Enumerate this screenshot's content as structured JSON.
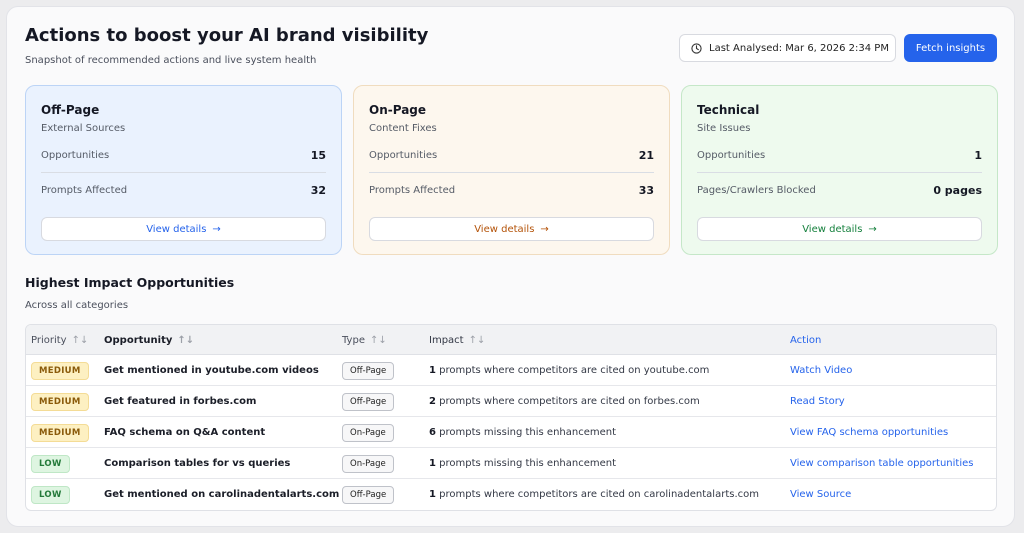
{
  "header": {
    "title": "Actions to boost your AI brand visibility",
    "subtitle": "Snapshot of recommended actions and live system health",
    "last_analysed": "Last Analysed: Mar 6, 2026 2:34 PM",
    "fetch_label": "Fetch insights",
    "clock_icon": "clock-icon",
    "accent": "#2563eb"
  },
  "cards": [
    {
      "title": "Off-Page",
      "subtitle": "External Sources",
      "m1_label": "Opportunities",
      "m1_value": "15",
      "m2_label": "Prompts Affected",
      "m2_value": "32",
      "button": "View details",
      "color": "#2563eb"
    },
    {
      "title": "On-Page",
      "subtitle": "Content Fixes",
      "m1_label": "Opportunities",
      "m1_value": "21",
      "m2_label": "Prompts Affected",
      "m2_value": "33",
      "button": "View details",
      "color": "#b45309"
    },
    {
      "title": "Technical",
      "subtitle": "Site Issues",
      "m1_label": "Opportunities",
      "m1_value": "1",
      "m2_label": "Pages/Crawlers Blocked",
      "m2_value": "0 pages",
      "button": "View details",
      "color": "#15803d"
    }
  ],
  "section": {
    "title": "Highest Impact Opportunities",
    "subtitle": "Across all categories"
  },
  "table": {
    "columns": [
      "Priority",
      "Opportunity",
      "Type",
      "Impact",
      "Action"
    ],
    "rows": [
      {
        "priority": "MEDIUM",
        "opportunity": "Get mentioned in youtube.com videos",
        "type": "Off-Page",
        "impact_num": "1",
        "impact_text": " prompts where competitors are cited on youtube.com",
        "action": "Watch Video"
      },
      {
        "priority": "MEDIUM",
        "opportunity": "Get featured in forbes.com",
        "type": "Off-Page",
        "impact_num": "2",
        "impact_text": " prompts where competitors are cited on forbes.com",
        "action": "Read Story"
      },
      {
        "priority": "MEDIUM",
        "opportunity": "FAQ schema on Q&A content",
        "type": "On-Page",
        "impact_num": "6",
        "impact_text": " prompts missing this enhancement",
        "action": "View FAQ schema opportunities"
      },
      {
        "priority": "LOW",
        "opportunity": "Comparison tables for vs queries",
        "type": "On-Page",
        "impact_num": "1",
        "impact_text": " prompts missing this enhancement",
        "action": "View comparison table opportunities"
      },
      {
        "priority": "LOW",
        "opportunity": "Get mentioned on carolinadentalarts.com",
        "type": "Off-Page",
        "impact_num": "1",
        "impact_text": " prompts where competitors are cited on carolinadentalarts.com",
        "action": "View Source"
      }
    ]
  }
}
